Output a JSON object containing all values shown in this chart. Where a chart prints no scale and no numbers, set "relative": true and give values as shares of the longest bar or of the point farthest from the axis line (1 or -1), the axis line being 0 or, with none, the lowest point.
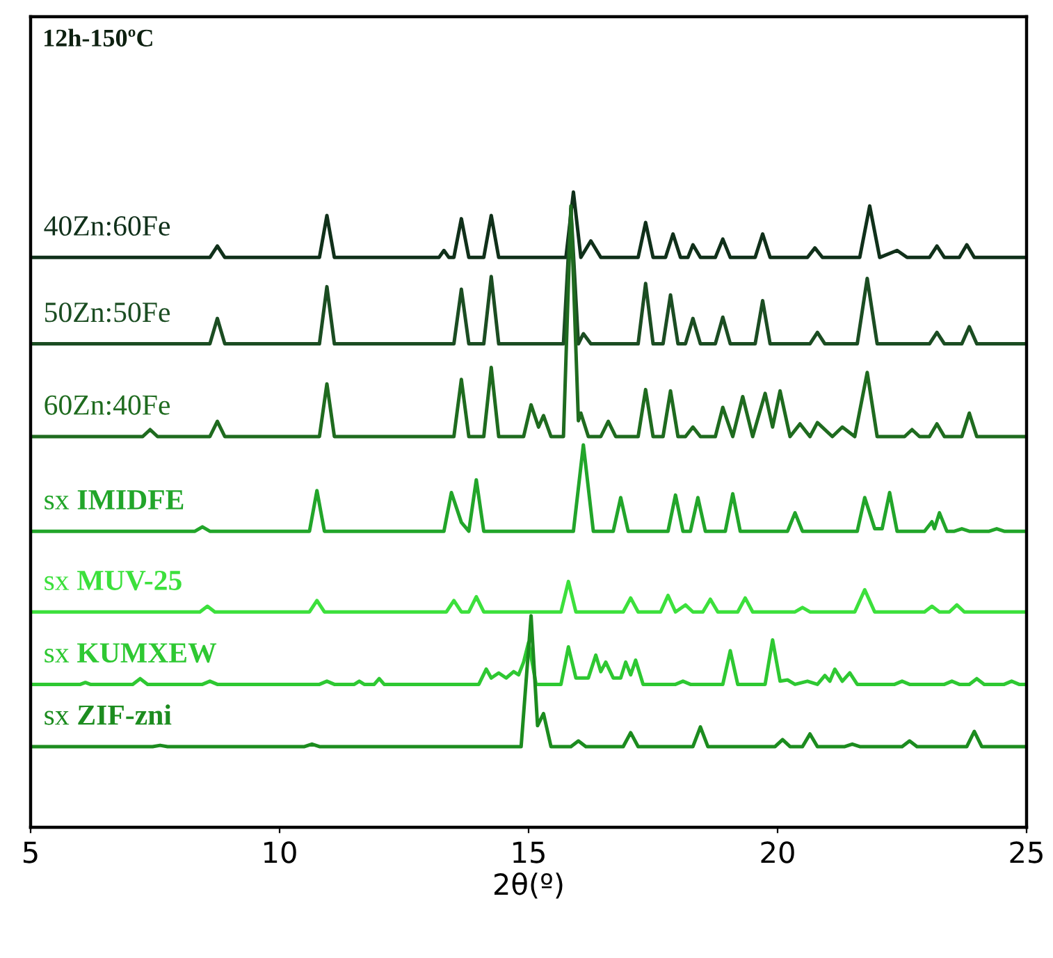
{
  "chart_data": {
    "type": "line",
    "title": "12h-150ºC",
    "xlabel": "2θ(º)",
    "relative": true,
    "legend": false,
    "xlim": [
      5,
      25
    ],
    "xticks": [
      5,
      10,
      15,
      20,
      25
    ],
    "series": [
      {
        "name": "40Zn:60Fe",
        "color": "#10301a",
        "x": [
          5,
          8.6,
          8.75,
          8.9,
          10.8,
          10.95,
          11.1,
          13.2,
          13.3,
          13.4,
          13.5,
          13.65,
          13.8,
          13.95,
          14.1,
          14.25,
          14.4,
          15.75,
          15.9,
          16.05,
          16.25,
          16.45,
          17.2,
          17.35,
          17.5,
          17.75,
          17.9,
          18.05,
          18.2,
          18.3,
          18.45,
          18.75,
          18.9,
          19.05,
          19.55,
          19.7,
          19.85,
          20.6,
          20.75,
          20.9,
          21.65,
          21.85,
          22.05,
          22.4,
          22.6,
          23.05,
          23.2,
          23.35,
          23.65,
          23.8,
          23.95,
          25
        ],
        "values": [
          0.897,
          0.897,
          0.915,
          0.897,
          0.897,
          0.963,
          0.897,
          0.897,
          0.908,
          0.897,
          0.897,
          0.958,
          0.897,
          0.897,
          0.897,
          0.963,
          0.897,
          0.897,
          1.0,
          0.897,
          0.923,
          0.897,
          0.897,
          0.952,
          0.897,
          0.897,
          0.934,
          0.897,
          0.897,
          0.917,
          0.897,
          0.897,
          0.926,
          0.897,
          0.897,
          0.934,
          0.897,
          0.897,
          0.912,
          0.897,
          0.897,
          0.978,
          0.897,
          0.908,
          0.897,
          0.897,
          0.915,
          0.897,
          0.897,
          0.917,
          0.897,
          0.897
        ]
      },
      {
        "name": "50Zn:50Fe",
        "color": "#1b4d22",
        "x": [
          5,
          8.6,
          8.75,
          8.9,
          10.8,
          10.95,
          11.1,
          13.5,
          13.65,
          13.8,
          14.1,
          14.25,
          14.4,
          15.7,
          15.85,
          16.0,
          16.1,
          16.25,
          17.2,
          17.35,
          17.5,
          17.7,
          17.85,
          18.0,
          18.15,
          18.3,
          18.45,
          18.75,
          18.9,
          19.05,
          19.55,
          19.7,
          19.85,
          20.65,
          20.8,
          20.95,
          21.6,
          21.8,
          22.0,
          23.05,
          23.2,
          23.35,
          23.7,
          23.85,
          24.0,
          25
        ],
        "values": [
          0.761,
          0.761,
          0.801,
          0.761,
          0.761,
          0.851,
          0.761,
          0.761,
          0.847,
          0.761,
          0.761,
          0.867,
          0.761,
          0.761,
          0.974,
          0.761,
          0.777,
          0.761,
          0.761,
          0.856,
          0.761,
          0.761,
          0.838,
          0.761,
          0.761,
          0.801,
          0.761,
          0.761,
          0.803,
          0.761,
          0.761,
          0.829,
          0.761,
          0.761,
          0.779,
          0.761,
          0.761,
          0.864,
          0.761,
          0.761,
          0.779,
          0.761,
          0.761,
          0.788,
          0.761,
          0.761
        ]
      },
      {
        "name": "60Zn:40Fe",
        "color": "#1f6b1f",
        "x": [
          5,
          7.25,
          7.4,
          7.55,
          8.6,
          8.75,
          8.9,
          10.8,
          10.95,
          11.1,
          13.5,
          13.65,
          13.8,
          14.1,
          14.25,
          14.4,
          14.9,
          15.05,
          15.2,
          15.3,
          15.45,
          15.7,
          15.85,
          16.0,
          16.05,
          16.2,
          16.45,
          16.6,
          16.75,
          17.2,
          17.35,
          17.5,
          17.7,
          17.85,
          18.0,
          18.15,
          18.3,
          18.45,
          18.75,
          18.9,
          19.1,
          19.3,
          19.5,
          19.75,
          19.9,
          20.05,
          20.25,
          20.45,
          20.65,
          20.8,
          21.1,
          21.3,
          21.55,
          21.8,
          22.0,
          22.55,
          22.7,
          22.85,
          23.05,
          23.2,
          23.35,
          23.7,
          23.85,
          24.0,
          25
        ],
        "values": [
          0.615,
          0.615,
          0.626,
          0.615,
          0.615,
          0.639,
          0.615,
          0.615,
          0.698,
          0.615,
          0.615,
          0.705,
          0.615,
          0.615,
          0.724,
          0.615,
          0.615,
          0.665,
          0.63,
          0.648,
          0.615,
          0.615,
          0.978,
          0.64,
          0.652,
          0.615,
          0.615,
          0.639,
          0.615,
          0.615,
          0.689,
          0.615,
          0.615,
          0.687,
          0.615,
          0.615,
          0.63,
          0.615,
          0.615,
          0.661,
          0.615,
          0.678,
          0.615,
          0.683,
          0.63,
          0.687,
          0.615,
          0.635,
          0.615,
          0.637,
          0.615,
          0.63,
          0.615,
          0.716,
          0.615,
          0.615,
          0.626,
          0.615,
          0.615,
          0.635,
          0.615,
          0.615,
          0.652,
          0.615,
          0.615
        ]
      },
      {
        "name": "sx IMIDFE",
        "color": "#22a52a",
        "x": [
          5,
          8.3,
          8.45,
          8.6,
          10.6,
          10.75,
          10.9,
          13.3,
          13.45,
          13.65,
          13.8,
          13.95,
          14.1,
          15.9,
          16.1,
          16.3,
          16.7,
          16.85,
          17.0,
          17.8,
          17.95,
          18.1,
          18.25,
          18.4,
          18.55,
          18.95,
          19.1,
          19.25,
          20.2,
          20.35,
          20.5,
          21.6,
          21.75,
          21.95,
          22.1,
          22.25,
          22.4,
          22.95,
          23.1,
          23.15,
          23.25,
          23.4,
          23.55,
          23.7,
          23.85,
          24.25,
          24.4,
          24.55,
          25
        ],
        "values": [
          0.466,
          0.466,
          0.473,
          0.466,
          0.466,
          0.53,
          0.466,
          0.466,
          0.527,
          0.48,
          0.466,
          0.547,
          0.466,
          0.466,
          0.602,
          0.466,
          0.466,
          0.519,
          0.466,
          0.466,
          0.523,
          0.466,
          0.466,
          0.519,
          0.466,
          0.466,
          0.525,
          0.466,
          0.466,
          0.495,
          0.466,
          0.466,
          0.519,
          0.47,
          0.47,
          0.527,
          0.466,
          0.466,
          0.481,
          0.47,
          0.495,
          0.466,
          0.466,
          0.47,
          0.466,
          0.466,
          0.47,
          0.466,
          0.466
        ]
      },
      {
        "name": "sx MUV-25",
        "color": "#3ce03c",
        "x": [
          5,
          8.4,
          8.55,
          8.7,
          10.6,
          10.75,
          10.9,
          13.35,
          13.5,
          13.65,
          13.8,
          13.95,
          14.1,
          15.65,
          15.8,
          15.95,
          16.9,
          17.05,
          17.2,
          17.65,
          17.8,
          17.95,
          18.15,
          18.3,
          18.5,
          18.65,
          18.8,
          19.2,
          19.35,
          19.5,
          20.35,
          20.5,
          20.65,
          21.55,
          21.75,
          21.95,
          22.95,
          23.1,
          23.25,
          23.45,
          23.6,
          23.75,
          25
        ],
        "values": [
          0.339,
          0.339,
          0.348,
          0.339,
          0.339,
          0.357,
          0.339,
          0.339,
          0.357,
          0.339,
          0.339,
          0.363,
          0.339,
          0.339,
          0.387,
          0.339,
          0.339,
          0.361,
          0.339,
          0.339,
          0.365,
          0.339,
          0.35,
          0.339,
          0.339,
          0.359,
          0.339,
          0.339,
          0.361,
          0.339,
          0.339,
          0.346,
          0.339,
          0.339,
          0.374,
          0.339,
          0.339,
          0.348,
          0.339,
          0.339,
          0.35,
          0.339,
          0.339
        ]
      },
      {
        "name": "sx KUMXEW",
        "color": "#2ec832",
        "x": [
          5,
          6.0,
          6.1,
          6.2,
          7.05,
          7.2,
          7.35,
          8.45,
          8.6,
          8.75,
          10.8,
          10.95,
          11.1,
          11.5,
          11.6,
          11.7,
          11.9,
          12.0,
          12.1,
          14.0,
          14.15,
          14.25,
          14.4,
          14.55,
          14.7,
          14.8,
          14.9,
          15.0,
          15.15,
          15.65,
          15.8,
          15.95,
          16.2,
          16.35,
          16.45,
          16.55,
          16.7,
          16.85,
          16.95,
          17.05,
          17.15,
          17.3,
          17.95,
          18.1,
          18.25,
          18.9,
          19.05,
          19.2,
          19.75,
          19.9,
          20.05,
          20.2,
          20.35,
          20.6,
          20.8,
          20.95,
          21.05,
          21.15,
          21.3,
          21.45,
          21.6,
          22.35,
          22.5,
          22.65,
          23.35,
          23.5,
          23.65,
          23.85,
          24.0,
          24.15,
          24.55,
          24.7,
          24.85,
          25
        ],
        "values": [
          0.225,
          0.225,
          0.228,
          0.225,
          0.225,
          0.234,
          0.225,
          0.225,
          0.23,
          0.225,
          0.225,
          0.23,
          0.225,
          0.225,
          0.23,
          0.225,
          0.225,
          0.234,
          0.225,
          0.225,
          0.249,
          0.235,
          0.243,
          0.235,
          0.245,
          0.24,
          0.26,
          0.291,
          0.225,
          0.225,
          0.284,
          0.235,
          0.235,
          0.271,
          0.245,
          0.26,
          0.235,
          0.235,
          0.26,
          0.24,
          0.263,
          0.225,
          0.225,
          0.23,
          0.225,
          0.225,
          0.278,
          0.225,
          0.225,
          0.295,
          0.23,
          0.232,
          0.225,
          0.23,
          0.225,
          0.239,
          0.23,
          0.249,
          0.23,
          0.243,
          0.225,
          0.225,
          0.23,
          0.225,
          0.225,
          0.23,
          0.225,
          0.225,
          0.234,
          0.225,
          0.225,
          0.23,
          0.225,
          0.225
        ]
      },
      {
        "name": "sx ZIF-zni",
        "color": "#1c8c1f",
        "x": [
          5,
          7.45,
          7.6,
          7.75,
          10.5,
          10.65,
          10.8,
          14.85,
          15.05,
          15.18,
          15.3,
          15.45,
          15.85,
          16.0,
          16.15,
          16.9,
          17.05,
          17.2,
          18.3,
          18.45,
          18.6,
          19.95,
          20.1,
          20.25,
          20.5,
          20.65,
          20.8,
          21.35,
          21.5,
          21.65,
          22.5,
          22.65,
          22.8,
          23.8,
          23.95,
          24.1,
          25
        ],
        "values": [
          0.127,
          0.127,
          0.129,
          0.127,
          0.127,
          0.131,
          0.127,
          0.127,
          0.333,
          0.16,
          0.179,
          0.127,
          0.127,
          0.136,
          0.127,
          0.127,
          0.149,
          0.127,
          0.127,
          0.158,
          0.127,
          0.127,
          0.138,
          0.127,
          0.127,
          0.147,
          0.127,
          0.127,
          0.131,
          0.127,
          0.127,
          0.136,
          0.127,
          0.127,
          0.151,
          0.127,
          0.127
        ]
      }
    ]
  }
}
